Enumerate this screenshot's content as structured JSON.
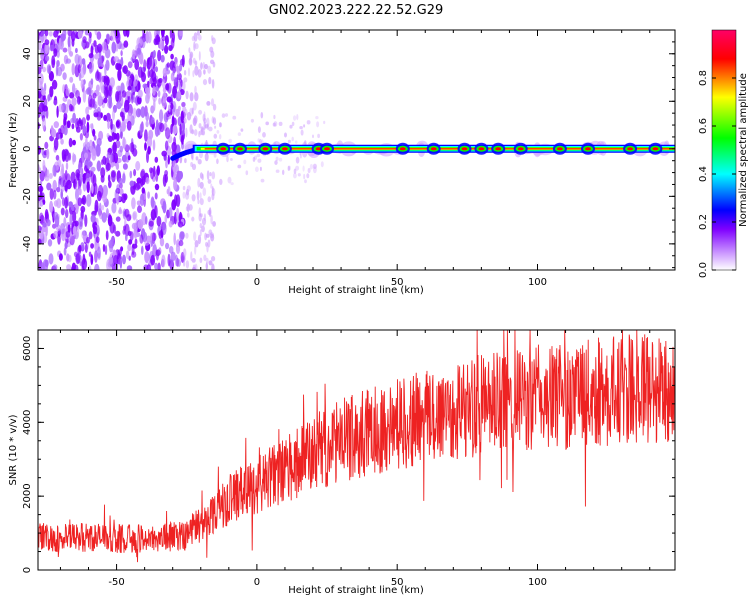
{
  "title": "GN02.2023.222.22.52.G29",
  "colors": {
    "snr_line": "#ee2222",
    "colormap": [
      "#ffffff",
      "#cc99ff",
      "#7f00ff",
      "#0000ff",
      "#00ffff",
      "#00ff00",
      "#ffff00",
      "#ff0000",
      "#ff0066"
    ]
  },
  "chart_data": [
    {
      "id": "spectrogram",
      "type": "heatmap",
      "xlabel": "Height of straight line (km)",
      "ylabel": "Frequency (Hz)",
      "xlim": [
        -78,
        149
      ],
      "ylim": [
        -51,
        50
      ],
      "xticks": [
        -50,
        0,
        50,
        100
      ],
      "xtick_labels": [
        "-50",
        "0",
        "50",
        "100"
      ],
      "yticks": [
        -40,
        -20,
        0,
        20,
        40
      ],
      "ytick_labels": [
        "-40",
        "-20",
        "0",
        "20",
        "40"
      ],
      "noise_region_x": [
        -78,
        -26
      ],
      "transition_region_x": [
        -26,
        -15
      ],
      "signal_track": {
        "start_x": -30,
        "end_x": 149,
        "frequency": 0.0,
        "start_frequency": -4
      },
      "grid": false,
      "colorbar": {
        "label": "Normalized spectral amplitude",
        "range": [
          0,
          1
        ],
        "ticks": [
          0.0,
          0.2,
          0.4,
          0.6,
          0.8
        ],
        "tick_labels": [
          "0.0",
          "0.2",
          "0.4",
          "0.6",
          "0.8"
        ]
      }
    },
    {
      "id": "snr",
      "type": "line",
      "xlabel": "Height of straight line (km)",
      "ylabel": "SNR (10 * v/v)",
      "xlim": [
        -78,
        149
      ],
      "ylim": [
        0,
        6500
      ],
      "xticks": [
        -50,
        0,
        50,
        100
      ],
      "xtick_labels": [
        "-50",
        "0",
        "50",
        "100"
      ],
      "yticks": [
        0,
        2000,
        4000,
        6000
      ],
      "ytick_labels": [
        "0",
        "2000",
        "4000",
        "6000"
      ],
      "grid": false,
      "series": [
        {
          "x": [
            -78,
            -70,
            -60,
            -50,
            -40,
            -30,
            -25,
            -20,
            -15,
            -10,
            -5,
            0,
            5,
            10,
            15,
            20,
            25,
            30,
            40,
            50,
            60,
            70,
            80,
            90,
            100,
            110,
            120,
            130,
            140,
            149
          ],
          "values": [
            900,
            850,
            900,
            850,
            850,
            900,
            1000,
            1250,
            1600,
            1900,
            2100,
            2300,
            2500,
            2700,
            2900,
            3100,
            3300,
            3500,
            3750,
            3950,
            4150,
            4300,
            4450,
            4550,
            4650,
            4700,
            4800,
            4850,
            4900,
            4950
          ]
        }
      ]
    }
  ]
}
